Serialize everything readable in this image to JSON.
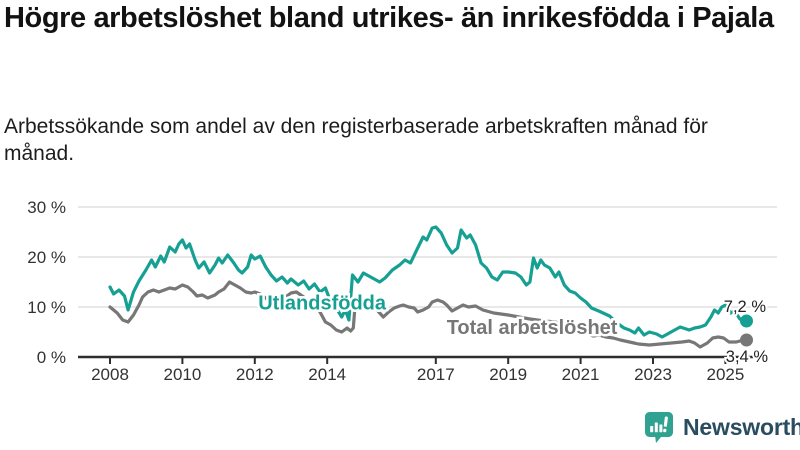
{
  "header": {
    "title": "Högre arbetslöshet bland utrikes- än inrikesfödda i Pajala",
    "subtitle": "Arbetssökande som andel av den registerbaserade arbetskraften månad för månad."
  },
  "chart_data": {
    "type": "line",
    "title": "Högre arbetslöshet bland utrikes- än inrikesfödda i Pajala",
    "subtitle": "Arbetssökande som andel av den registerbaserade arbetskraften månad för månad.",
    "unit": "%",
    "grid": "horizontal",
    "legend_position": "inline-labels",
    "x_range": [
      2008,
      2025.6
    ],
    "y_axis": {
      "range": [
        0,
        32
      ],
      "ticks": [
        {
          "label": "0 %",
          "value": 0
        },
        {
          "label": "10 %",
          "value": 10
        },
        {
          "label": "20 %",
          "value": 20
        },
        {
          "label": "30 %",
          "value": 30
        }
      ]
    },
    "x_axis": {
      "ticks": [
        {
          "label": "2008",
          "year": 2008
        },
        {
          "label": "2010",
          "year": 2010
        },
        {
          "label": "2012",
          "year": 2012
        },
        {
          "label": "2014",
          "year": 2014
        },
        {
          "label": "2017",
          "year": 2017
        },
        {
          "label": "2019",
          "year": 2019
        },
        {
          "label": "2021",
          "year": 2021
        },
        {
          "label": "2023",
          "year": 2023
        },
        {
          "label": "2025",
          "year": 2025
        }
      ]
    },
    "series": [
      {
        "name": "Utlandsfödda",
        "color": "#16a094",
        "end_label": "7,2 %",
        "end_value": 7.2,
        "label_pos": {
          "year": 2013.86,
          "pct": 10.9
        },
        "points": [
          [
            2008.0,
            14.0
          ],
          [
            2008.1,
            12.6
          ],
          [
            2008.25,
            13.4
          ],
          [
            2008.4,
            12.2
          ],
          [
            2008.5,
            9.4
          ],
          [
            2008.65,
            13.0
          ],
          [
            2008.8,
            15.2
          ],
          [
            2009.0,
            17.5
          ],
          [
            2009.15,
            19.4
          ],
          [
            2009.25,
            18.0
          ],
          [
            2009.4,
            20.2
          ],
          [
            2009.5,
            19.0
          ],
          [
            2009.65,
            22.0
          ],
          [
            2009.8,
            21.0
          ],
          [
            2009.9,
            22.6
          ],
          [
            2010.0,
            23.4
          ],
          [
            2010.1,
            21.8
          ],
          [
            2010.2,
            22.6
          ],
          [
            2010.35,
            19.4
          ],
          [
            2010.45,
            17.8
          ],
          [
            2010.6,
            19.0
          ],
          [
            2010.75,
            16.8
          ],
          [
            2010.9,
            18.4
          ],
          [
            2011.0,
            19.8
          ],
          [
            2011.1,
            18.8
          ],
          [
            2011.25,
            20.4
          ],
          [
            2011.4,
            19.0
          ],
          [
            2011.55,
            17.4
          ],
          [
            2011.65,
            16.8
          ],
          [
            2011.8,
            18.0
          ],
          [
            2011.9,
            20.4
          ],
          [
            2012.0,
            19.6
          ],
          [
            2012.15,
            20.2
          ],
          [
            2012.3,
            18.0
          ],
          [
            2012.45,
            16.4
          ],
          [
            2012.6,
            15.2
          ],
          [
            2012.75,
            16.0
          ],
          [
            2012.9,
            14.8
          ],
          [
            2013.0,
            15.6
          ],
          [
            2013.2,
            14.4
          ],
          [
            2013.35,
            15.2
          ],
          [
            2013.5,
            13.6
          ],
          [
            2013.65,
            14.6
          ],
          [
            2013.8,
            13.0
          ],
          [
            2013.95,
            13.8
          ],
          [
            2014.1,
            11.0
          ],
          [
            2014.25,
            9.8
          ],
          [
            2014.4,
            8.0
          ],
          [
            2014.5,
            9.4
          ],
          [
            2014.6,
            7.4
          ],
          [
            2014.7,
            16.4
          ],
          [
            2014.85,
            15.0
          ],
          [
            2015.0,
            16.8
          ],
          [
            2015.2,
            16.0
          ],
          [
            2015.45,
            15.0
          ],
          [
            2015.6,
            15.8
          ],
          [
            2015.8,
            17.4
          ],
          [
            2016.0,
            18.4
          ],
          [
            2016.15,
            19.4
          ],
          [
            2016.3,
            18.8
          ],
          [
            2016.5,
            21.8
          ],
          [
            2016.65,
            24.0
          ],
          [
            2016.75,
            23.4
          ],
          [
            2016.9,
            25.8
          ],
          [
            2017.0,
            26.0
          ],
          [
            2017.15,
            24.8
          ],
          [
            2017.3,
            22.4
          ],
          [
            2017.45,
            20.8
          ],
          [
            2017.6,
            21.8
          ],
          [
            2017.7,
            25.4
          ],
          [
            2017.85,
            23.8
          ],
          [
            2017.95,
            24.4
          ],
          [
            2018.1,
            22.4
          ],
          [
            2018.25,
            18.8
          ],
          [
            2018.4,
            17.8
          ],
          [
            2018.55,
            16.0
          ],
          [
            2018.7,
            15.4
          ],
          [
            2018.85,
            17.0
          ],
          [
            2019.0,
            17.0
          ],
          [
            2019.2,
            16.8
          ],
          [
            2019.35,
            16.0
          ],
          [
            2019.5,
            14.4
          ],
          [
            2019.6,
            15.0
          ],
          [
            2019.7,
            19.8
          ],
          [
            2019.8,
            17.8
          ],
          [
            2019.9,
            19.4
          ],
          [
            2020.0,
            18.4
          ],
          [
            2020.15,
            17.8
          ],
          [
            2020.3,
            16.0
          ],
          [
            2020.4,
            17.0
          ],
          [
            2020.55,
            14.4
          ],
          [
            2020.7,
            13.2
          ],
          [
            2020.85,
            12.8
          ],
          [
            2021.0,
            11.8
          ],
          [
            2021.15,
            11.0
          ],
          [
            2021.3,
            9.8
          ],
          [
            2021.5,
            9.2
          ],
          [
            2021.8,
            8.2
          ],
          [
            2022.0,
            6.8
          ],
          [
            2022.2,
            5.8
          ],
          [
            2022.35,
            5.4
          ],
          [
            2022.5,
            4.8
          ],
          [
            2022.6,
            5.8
          ],
          [
            2022.75,
            4.4
          ],
          [
            2022.9,
            5.0
          ],
          [
            2023.1,
            4.6
          ],
          [
            2023.25,
            4.0
          ],
          [
            2023.5,
            5.0
          ],
          [
            2023.75,
            6.0
          ],
          [
            2024.0,
            5.4
          ],
          [
            2024.15,
            5.8
          ],
          [
            2024.3,
            6.0
          ],
          [
            2024.45,
            6.4
          ],
          [
            2024.6,
            8.0
          ],
          [
            2024.7,
            9.4
          ],
          [
            2024.8,
            8.8
          ],
          [
            2024.9,
            10.0
          ],
          [
            2025.0,
            10.4
          ],
          [
            2025.15,
            8.8
          ],
          [
            2025.25,
            9.2
          ],
          [
            2025.4,
            7.6
          ],
          [
            2025.5,
            7.2
          ]
        ]
      },
      {
        "name": "Total arbetslöshet",
        "color": "#777777",
        "end_label": "3,4 %",
        "end_value": 3.4,
        "label_pos": {
          "year": 2019.66,
          "pct": 6.0
        },
        "points": [
          [
            2008.0,
            10.0
          ],
          [
            2008.2,
            8.8
          ],
          [
            2008.35,
            7.4
          ],
          [
            2008.5,
            7.0
          ],
          [
            2008.65,
            8.4
          ],
          [
            2008.8,
            10.4
          ],
          [
            2008.9,
            12.0
          ],
          [
            2009.05,
            13.0
          ],
          [
            2009.2,
            13.4
          ],
          [
            2009.35,
            13.0
          ],
          [
            2009.5,
            13.4
          ],
          [
            2009.65,
            13.8
          ],
          [
            2009.8,
            13.6
          ],
          [
            2009.9,
            14.0
          ],
          [
            2010.0,
            14.4
          ],
          [
            2010.15,
            14.0
          ],
          [
            2010.3,
            13.0
          ],
          [
            2010.4,
            12.2
          ],
          [
            2010.55,
            12.4
          ],
          [
            2010.7,
            11.8
          ],
          [
            2010.9,
            12.4
          ],
          [
            2011.0,
            13.0
          ],
          [
            2011.15,
            13.6
          ],
          [
            2011.3,
            15.0
          ],
          [
            2011.45,
            14.4
          ],
          [
            2011.6,
            13.8
          ],
          [
            2011.75,
            13.0
          ],
          [
            2011.9,
            12.8
          ],
          [
            2012.0,
            13.0
          ],
          [
            2012.15,
            12.6
          ],
          [
            2012.3,
            11.8
          ],
          [
            2012.45,
            10.8
          ],
          [
            2012.55,
            10.4
          ],
          [
            2012.7,
            11.0
          ],
          [
            2012.85,
            12.0
          ],
          [
            2013.0,
            12.8
          ],
          [
            2013.15,
            13.0
          ],
          [
            2013.35,
            12.0
          ],
          [
            2013.5,
            11.0
          ],
          [
            2013.65,
            10.4
          ],
          [
            2013.8,
            9.0
          ],
          [
            2013.95,
            7.0
          ],
          [
            2014.1,
            6.4
          ],
          [
            2014.25,
            5.4
          ],
          [
            2014.4,
            5.0
          ],
          [
            2014.55,
            5.8
          ],
          [
            2014.65,
            5.2
          ],
          [
            2014.72,
            5.8
          ],
          [
            2014.76,
            9.4
          ],
          [
            2014.85,
            9.8
          ],
          [
            2015.0,
            11.2
          ],
          [
            2015.15,
            11.0
          ],
          [
            2015.3,
            10.0
          ],
          [
            2015.45,
            8.8
          ],
          [
            2015.55,
            8.0
          ],
          [
            2015.7,
            9.0
          ],
          [
            2015.85,
            9.8
          ],
          [
            2016.0,
            10.2
          ],
          [
            2016.1,
            10.4
          ],
          [
            2016.25,
            10.0
          ],
          [
            2016.4,
            9.8
          ],
          [
            2016.5,
            9.0
          ],
          [
            2016.65,
            9.4
          ],
          [
            2016.8,
            10.0
          ],
          [
            2016.9,
            11.0
          ],
          [
            2017.05,
            11.4
          ],
          [
            2017.2,
            11.0
          ],
          [
            2017.3,
            10.4
          ],
          [
            2017.45,
            9.2
          ],
          [
            2017.6,
            9.8
          ],
          [
            2017.75,
            10.4
          ],
          [
            2017.9,
            10.0
          ],
          [
            2018.1,
            10.2
          ],
          [
            2018.3,
            9.4
          ],
          [
            2018.6,
            8.8
          ],
          [
            2019.0,
            8.4
          ],
          [
            2019.3,
            8.0
          ],
          [
            2019.6,
            7.6
          ],
          [
            2020.0,
            7.2
          ],
          [
            2020.3,
            7.0
          ],
          [
            2020.6,
            6.4
          ],
          [
            2021.0,
            5.4
          ],
          [
            2021.2,
            4.6
          ],
          [
            2021.35,
            4.2
          ],
          [
            2021.5,
            4.4
          ],
          [
            2021.7,
            4.0
          ],
          [
            2021.9,
            3.8
          ],
          [
            2022.1,
            3.4
          ],
          [
            2022.35,
            3.0
          ],
          [
            2022.6,
            2.6
          ],
          [
            2022.9,
            2.4
          ],
          [
            2023.2,
            2.6
          ],
          [
            2023.5,
            2.8
          ],
          [
            2023.8,
            3.0
          ],
          [
            2024.0,
            3.2
          ],
          [
            2024.15,
            2.8
          ],
          [
            2024.3,
            2.0
          ],
          [
            2024.5,
            2.8
          ],
          [
            2024.65,
            3.8
          ],
          [
            2024.8,
            4.0
          ],
          [
            2024.95,
            3.8
          ],
          [
            2025.1,
            3.0
          ],
          [
            2025.3,
            3.0
          ],
          [
            2025.5,
            3.4
          ]
        ]
      }
    ],
    "colors": {
      "grid": "#d9d9d9",
      "axis": "#2e2e2e",
      "axis_text": "#333333",
      "value_label_text": "#222222"
    }
  },
  "footer": {
    "brand": "Newsworthy",
    "logo_icon": "bar-chart-speech-bubble-icon",
    "brand_color": "#2a4c60",
    "icon_color": "#2fa291"
  }
}
